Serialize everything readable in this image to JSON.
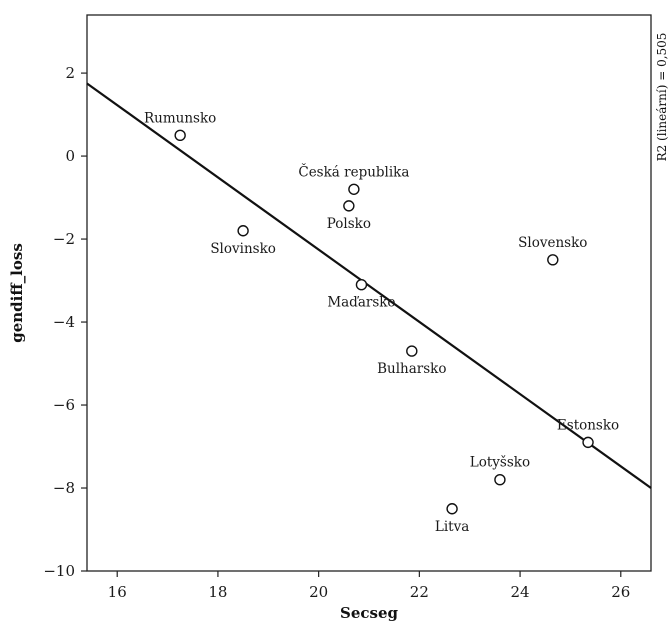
{
  "chart_data": {
    "type": "scatter",
    "xlabel": "Secseg",
    "ylabel": "gendiff_loss",
    "xlim": [
      15.4,
      26.6
    ],
    "ylim": [
      -10,
      3.4
    ],
    "xticks": [
      16,
      18,
      20,
      22,
      24,
      26
    ],
    "yticks": [
      2,
      0,
      -2,
      -4,
      -6,
      -8,
      -10
    ],
    "xtick_labels": [
      "16",
      "18",
      "20",
      "22",
      "24",
      "26"
    ],
    "ytick_labels": [
      "2",
      "0",
      "−2",
      "−4",
      "−6",
      "−8",
      "−10"
    ],
    "grid": false,
    "points": [
      {
        "label": "Rumunsko",
        "x": 17.25,
        "y": 0.5,
        "label_side": "above"
      },
      {
        "label": "Česká republika",
        "x": 20.7,
        "y": -0.8,
        "label_side": "above"
      },
      {
        "label": "Polsko",
        "x": 20.6,
        "y": -1.2,
        "label_side": "below"
      },
      {
        "label": "Slovinsko",
        "x": 18.5,
        "y": -1.8,
        "label_side": "below"
      },
      {
        "label": "Slovensko",
        "x": 24.65,
        "y": -2.5,
        "label_side": "above"
      },
      {
        "label": "Maďarsko",
        "x": 20.85,
        "y": -3.1,
        "label_side": "below"
      },
      {
        "label": "Bulharsko",
        "x": 21.85,
        "y": -4.7,
        "label_side": "below"
      },
      {
        "label": "Estonsko",
        "x": 25.35,
        "y": -6.9,
        "label_side": "above"
      },
      {
        "label": "Lotyšsko",
        "x": 23.6,
        "y": -7.8,
        "label_side": "above"
      },
      {
        "label": "Litva",
        "x": 22.65,
        "y": -8.5,
        "label_side": "below"
      }
    ],
    "fit_line": {
      "type": "linear",
      "x": [
        15.4,
        26.6
      ],
      "y": [
        1.75,
        -8.0
      ]
    },
    "annotation": "R2 (lineární) = 0,505",
    "colors": {
      "marker_stroke": "#111111",
      "marker_fill": "#ffffff",
      "line": "#111111",
      "frame": "#222222"
    }
  }
}
